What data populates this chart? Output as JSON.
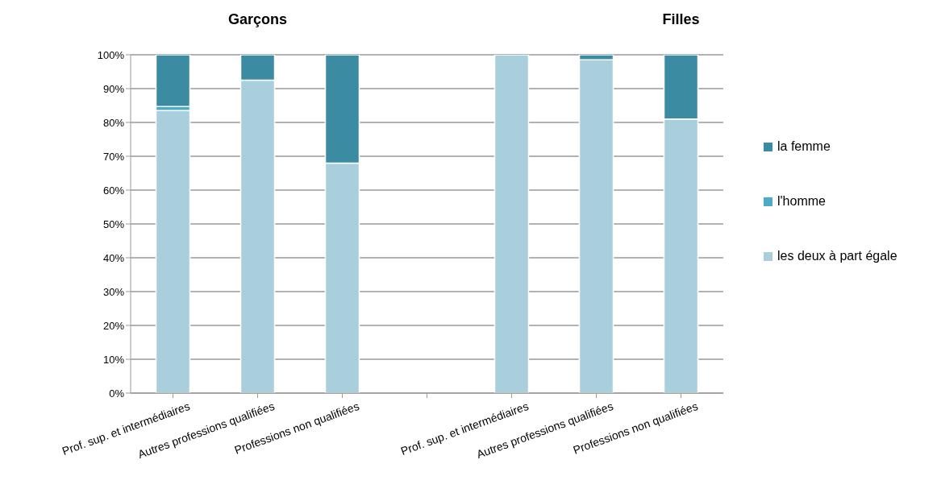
{
  "chart_data": {
    "type": "bar",
    "stacked": true,
    "annotations": [
      "Garçons",
      "Filles"
    ],
    "categories": [
      "Prof. sup. et intermédiaires",
      "Autres professions qualifiées",
      "Professions non qualifiées",
      null,
      "Prof. sup. et intermédiaires",
      "Autres professions qualifiées",
      "Professions non qualifiées"
    ],
    "series": [
      {
        "name": "les deux à part égale",
        "color": "#a9cedc",
        "values": [
          83.5,
          92.5,
          68,
          null,
          100,
          98.5,
          81
        ]
      },
      {
        "name": "l'homme",
        "color": "#4bacc6",
        "values": [
          1.2,
          0,
          0,
          null,
          0,
          0,
          0
        ]
      },
      {
        "name": "la femme",
        "color": "#3b8ba3",
        "values": [
          15.3,
          7.5,
          32,
          null,
          0,
          1.5,
          19
        ]
      }
    ],
    "ylim": [
      0,
      100
    ],
    "yticks": [
      {
        "value": 0,
        "label": "0%"
      },
      {
        "value": 10,
        "label": "10%"
      },
      {
        "value": 20,
        "label": "20%"
      },
      {
        "value": 30,
        "label": "30%"
      },
      {
        "value": 40,
        "label": "40%"
      },
      {
        "value": 50,
        "label": "50%"
      },
      {
        "value": 60,
        "label": "60%"
      },
      {
        "value": 70,
        "label": "70%"
      },
      {
        "value": 80,
        "label": "80%"
      },
      {
        "value": 90,
        "label": "90%"
      },
      {
        "value": 100,
        "label": "100%"
      }
    ],
    "grid": "y",
    "legend": "right"
  }
}
